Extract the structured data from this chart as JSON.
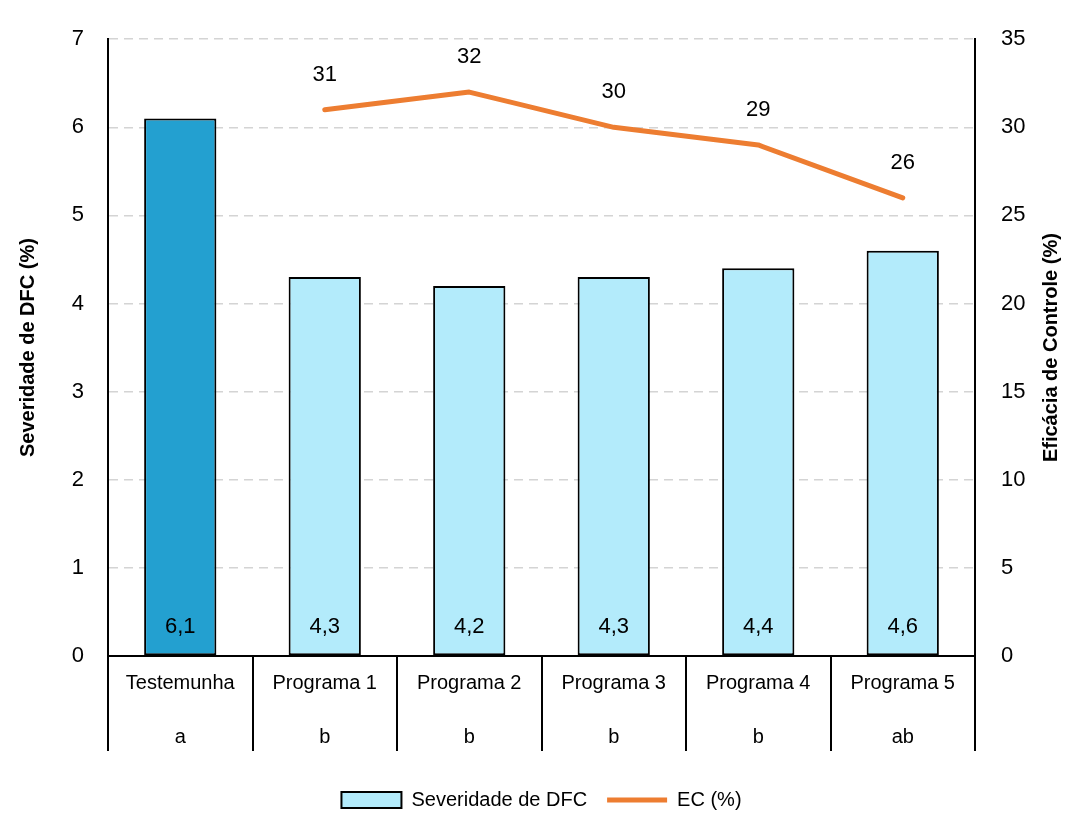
{
  "chart_data": {
    "type": "bar",
    "categories": [
      "Testemunha",
      "Programa 1",
      "Programa 2",
      "Programa 3",
      "Programa 4",
      "Programa 5"
    ],
    "series": [
      {
        "name": "Severidade de DFC",
        "color": "#b3ebfb",
        "colors": [
          "#23a0d0",
          "#b3ebfb",
          "#b3ebfb",
          "#b3ebfb",
          "#b3ebfb",
          "#b3ebfb"
        ],
        "values": [
          6.1,
          4.3,
          4.2,
          4.3,
          4.4,
          4.6
        ],
        "value_labels": [
          "6,1",
          "4,3",
          "4,2",
          "4,3",
          "4,4",
          "4,6"
        ]
      },
      {
        "name": "EC (%)",
        "type": "line",
        "axis": "y2",
        "color": "#ed7d31",
        "values": [
          null,
          31,
          32,
          30,
          29,
          26
        ],
        "value_labels": [
          null,
          "31",
          "32",
          "30",
          "29",
          "26"
        ]
      }
    ],
    "ylabel": "Severidade de DFC (%)",
    "y2label": "Eficácia de Controle (%)",
    "ylim": [
      0,
      7
    ],
    "yticks": [
      0,
      1,
      2,
      3,
      4,
      5,
      6,
      7
    ],
    "y2lim": [
      0,
      35
    ],
    "y2ticks": [
      0,
      5,
      10,
      15,
      20,
      25,
      30,
      35
    ],
    "grid": "y",
    "legend": "bottom",
    "annotations": [
      "a",
      "b",
      "b",
      "b",
      "b",
      "ab"
    ]
  }
}
